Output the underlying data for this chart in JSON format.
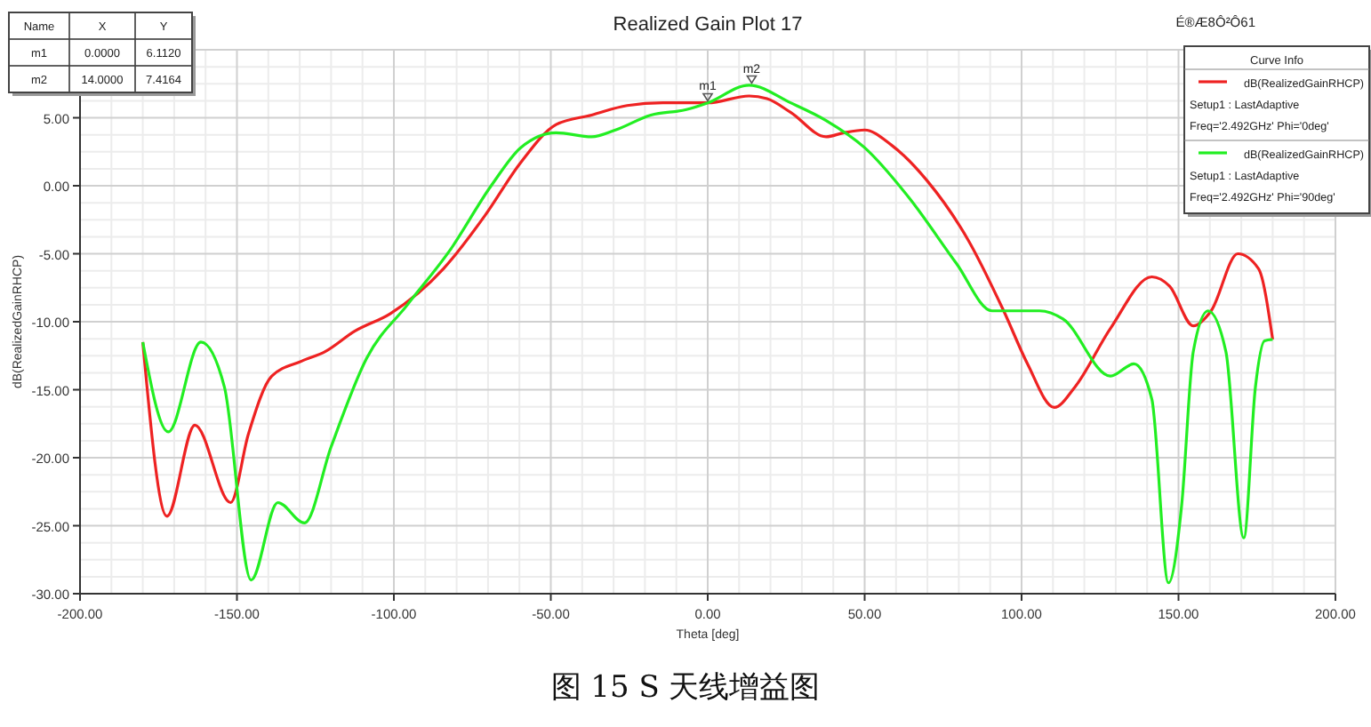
{
  "chart_data": {
    "type": "line",
    "title": "Realized Gain Plot 17",
    "xlabel": "Theta [deg]",
    "ylabel": "dB(RealizedGainRHCP)",
    "legend_title": "Curve Info",
    "legend": "top right",
    "grid": true,
    "marker": "none",
    "line_style": "solid",
    "xlim": [
      -200,
      200
    ],
    "xticks": [
      {
        "value": -200,
        "label": "-200.00"
      },
      {
        "value": -150,
        "label": "-150.00"
      },
      {
        "value": -100,
        "label": "-100.00"
      },
      {
        "value": -50,
        "label": "-50.00"
      },
      {
        "value": 0,
        "label": "0.00"
      },
      {
        "value": 50,
        "label": "50.00"
      },
      {
        "value": 100,
        "label": "100.00"
      },
      {
        "value": 150,
        "label": "150.00"
      },
      {
        "value": 200,
        "label": "200.00"
      }
    ],
    "ylim": [
      -30,
      10
    ],
    "yticks": [
      {
        "value": -30,
        "label": "-30.00"
      },
      {
        "value": -25,
        "label": "-25.00"
      },
      {
        "value": -20,
        "label": "-20.00"
      },
      {
        "value": -15,
        "label": "-15.00"
      },
      {
        "value": -10,
        "label": "-10.00"
      },
      {
        "value": -5,
        "label": "-5.00"
      },
      {
        "value": 0,
        "label": "0.00"
      },
      {
        "value": 5,
        "label": "5.00"
      },
      {
        "value": 10,
        "label": null
      }
    ],
    "series": [
      {
        "name": "dB(RealizedGainRHCP)\nSetup1 : LastAdaptive\nFreq='2.492GHz' Phi='0deg'",
        "color": "#ee2222",
        "x": [
          -180,
          -172.3,
          -163.4,
          -152,
          -146.4,
          -138.9,
          -129.4,
          -121.9,
          -112.5,
          -101.1,
          -84.2,
          -71,
          -59.6,
          -48.3,
          -37,
          -25.7,
          -14.3,
          0,
          13.2,
          18.9,
          26.4,
          37.7,
          43.4,
          50,
          58.5,
          69.8,
          83,
          94.3,
          101.9,
          110.4,
          117,
          128.3,
          141.5,
          147.2,
          154.7,
          160.4,
          168.9,
          175.5,
          180
        ],
        "values": [
          -11.5,
          -24.3,
          -17.6,
          -23.3,
          -18.3,
          -14,
          -12.9,
          -12.2,
          -10.7,
          -9.4,
          -6.1,
          -2.2,
          1.7,
          4.5,
          5.2,
          5.9,
          6.1,
          6.1,
          6.6,
          6.4,
          5.4,
          3.6,
          3.9,
          4.1,
          3,
          0.4,
          -4,
          -9.2,
          -13.1,
          -16.3,
          -14.8,
          -10.5,
          -6.7,
          -7.4,
          -10.3,
          -9.2,
          -5,
          -6.1,
          -11.3
        ]
      },
      {
        "name": "dB(RealizedGainRHCP)\nSetup1 : LastAdaptive\nFreq='2.492GHz' Phi='90deg'",
        "color": "#22ee22",
        "x": [
          -180,
          -171.9,
          -161.5,
          -154,
          -145.5,
          -137,
          -128.5,
          -120,
          -108.7,
          -95.5,
          -82.3,
          -69,
          -59.6,
          -48.3,
          -37,
          -29.4,
          -18.1,
          -6.8,
          0,
          13.2,
          26.4,
          37.7,
          50,
          64.2,
          79.2,
          90.6,
          105.7,
          113.2,
          128.3,
          135.8,
          141.5,
          146.8,
          151,
          154.7,
          159.4,
          165.1,
          170.8,
          174.5,
          177.4,
          180
        ],
        "values": [
          -11.5,
          -18.1,
          -11.5,
          -14.8,
          -29,
          -23.3,
          -24.8,
          -19.2,
          -12.7,
          -8.7,
          -4.8,
          0,
          2.8,
          3.9,
          3.6,
          4.1,
          5.2,
          5.6,
          6.1,
          7.4,
          6.1,
          4.8,
          2.8,
          -0.9,
          -5.7,
          -9.2,
          -9.2,
          -9.8,
          -14,
          -13.1,
          -15.7,
          -29.2,
          -23.5,
          -12.2,
          -9.2,
          -12.2,
          -25.9,
          -14.8,
          -11.4,
          -11.3
        ]
      }
    ],
    "annotations": [
      "Name",
      "X",
      "Y",
      "m1",
      "0.0000",
      "6.1120",
      "m2",
      "14.0000",
      "7.4164",
      "É®Æ8Ô²Ô61",
      "图 15 S 天线增益图",
      {
        "text": "m1",
        "x": 0,
        "y": 6.112
      },
      {
        "text": "m2",
        "x": 14,
        "y": 7.4164
      }
    ]
  }
}
